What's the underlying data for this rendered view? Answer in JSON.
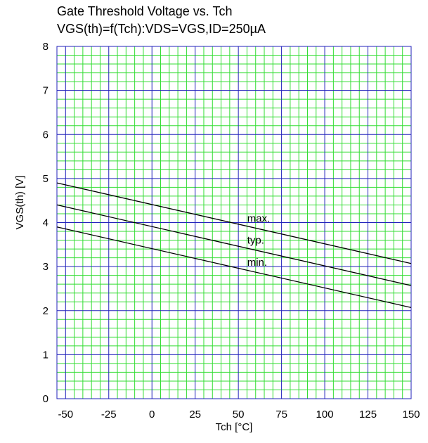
{
  "chart_data": {
    "type": "line",
    "title": "Gate Threshold Voltage vs. Tch",
    "subtitle": "VGS(th)=f(Tch):VDS=VGS,ID=250µA",
    "xlabel": "Tch [°C]",
    "ylabel": "VGS(th) [V]",
    "xlim": [
      -55,
      150
    ],
    "ylim": [
      0,
      8
    ],
    "xticks": [
      -50,
      -25,
      0,
      25,
      50,
      75,
      100,
      125,
      150
    ],
    "yticks": [
      0,
      1,
      2,
      3,
      4,
      5,
      6,
      7,
      8
    ],
    "grid": true,
    "colors": {
      "minor_grid": "#33dd33",
      "major_grid": "#2222bb",
      "line": "#000000",
      "plot_border": "#2222bb"
    },
    "series": [
      {
        "name": "max.",
        "x": [
          -55,
          150
        ],
        "y": [
          4.9,
          3.07
        ]
      },
      {
        "name": "typ.",
        "x": [
          -55,
          150
        ],
        "y": [
          4.4,
          2.57
        ]
      },
      {
        "name": "min.",
        "x": [
          -55,
          150
        ],
        "y": [
          3.9,
          2.07
        ]
      }
    ]
  }
}
